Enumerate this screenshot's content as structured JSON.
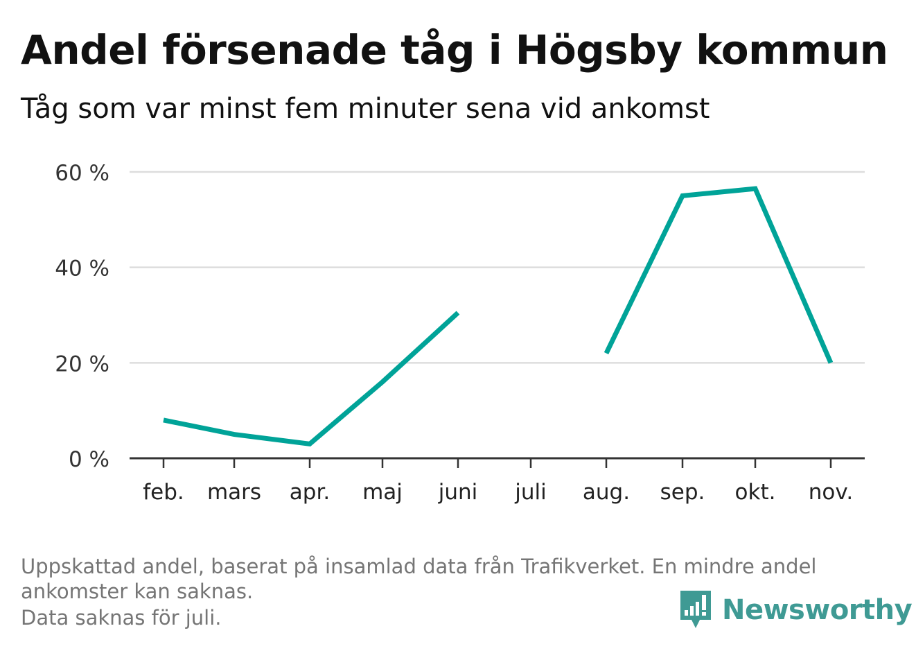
{
  "header": {
    "title": "Andel försenade tåg i Högsby kommun",
    "subtitle": "Tåg som var minst fem minuter sena vid ankomst"
  },
  "chart_data": {
    "type": "line",
    "title": "Andel försenade tåg i Högsby kommun",
    "subtitle": "Tåg som var minst fem minuter sena vid ankomst",
    "categories": [
      "feb.",
      "mars",
      "apr.",
      "maj",
      "juni",
      "juli",
      "aug.",
      "sep.",
      "okt.",
      "nov."
    ],
    "series": [
      {
        "values": [
          8,
          5,
          3,
          16,
          30.5,
          null,
          22,
          55,
          56.5,
          20
        ]
      }
    ],
    "y_ticks": [
      "0 %",
      "20 %",
      "40 %",
      "60 %"
    ],
    "y_tick_values": [
      0,
      20,
      40,
      60
    ],
    "ylim": [
      0,
      60
    ],
    "xlabel": "",
    "ylabel": "",
    "grid": true,
    "line_color": "#00a398"
  },
  "footer": {
    "note_line1": "Uppskattad andel, baserat på insamlad data från Trafikverket. En mindre andel",
    "note_line2": "ankomster kan saknas.",
    "note_line3": "Data saknas för juli.",
    "brand": "Newsworthy",
    "brand_icon": "newsworthy-bar-chart-icon",
    "brand_color": "#3f9a94"
  }
}
